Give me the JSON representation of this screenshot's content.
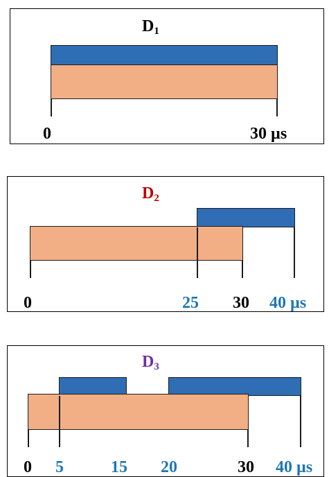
{
  "colors": {
    "blue_bar": "#2f6db4",
    "orange_bar": "#f2ae84",
    "black_text": "#000000",
    "blue_text": "#1f77b4",
    "red_text": "#c00000",
    "purple_text": "#7030a0"
  },
  "panels": [
    {
      "title_main": "D",
      "title_sub": "1",
      "title_color": "#000000",
      "labels": [
        {
          "text": "0",
          "color": "#000000"
        },
        {
          "text": "30 µs",
          "color": "#000000"
        }
      ]
    },
    {
      "title_main": "D",
      "title_sub": "2",
      "title_color": "#c00000",
      "labels": [
        {
          "text": "0",
          "color": "#000000"
        },
        {
          "text": "25",
          "color": "#1f77b4"
        },
        {
          "text": "30",
          "color": "#000000"
        },
        {
          "text": "40 µs",
          "color": "#1f77b4"
        }
      ]
    },
    {
      "title_main": "D",
      "title_sub": "3",
      "title_color": "#7030a0",
      "labels": [
        {
          "text": "0",
          "color": "#000000"
        },
        {
          "text": "5",
          "color": "#1f77b4"
        },
        {
          "text": "15",
          "color": "#1f77b4"
        },
        {
          "text": "20",
          "color": "#1f77b4"
        },
        {
          "text": "30",
          "color": "#000000"
        },
        {
          "text": "40 µs",
          "color": "#1f77b4"
        }
      ]
    }
  ]
}
